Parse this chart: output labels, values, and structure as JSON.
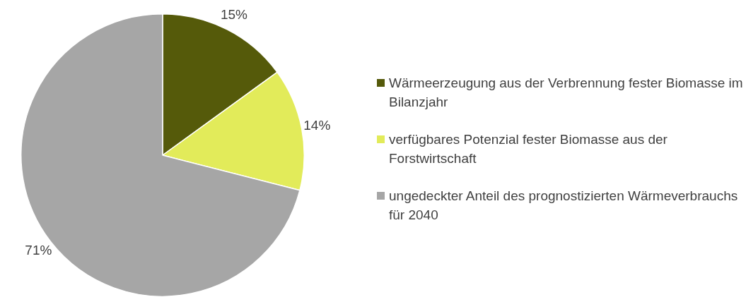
{
  "chart_data": {
    "type": "pie",
    "categories": [
      "Wärmeerzeugung aus der Verbrennung fester Biomasse im Bilanzjahr",
      "verfügbares Potenzial fester Biomasse aus der Forstwirtschaft",
      "ungedeckter Anteil des prognostizierten Wärmeverbrauchs für 2040"
    ],
    "values": [
      15,
      14,
      71
    ],
    "colors": [
      "#555a0a",
      "#e2eb5a",
      "#a6a6a6"
    ],
    "value_labels": [
      "15%",
      "14%",
      "71%"
    ],
    "legend": "right"
  }
}
